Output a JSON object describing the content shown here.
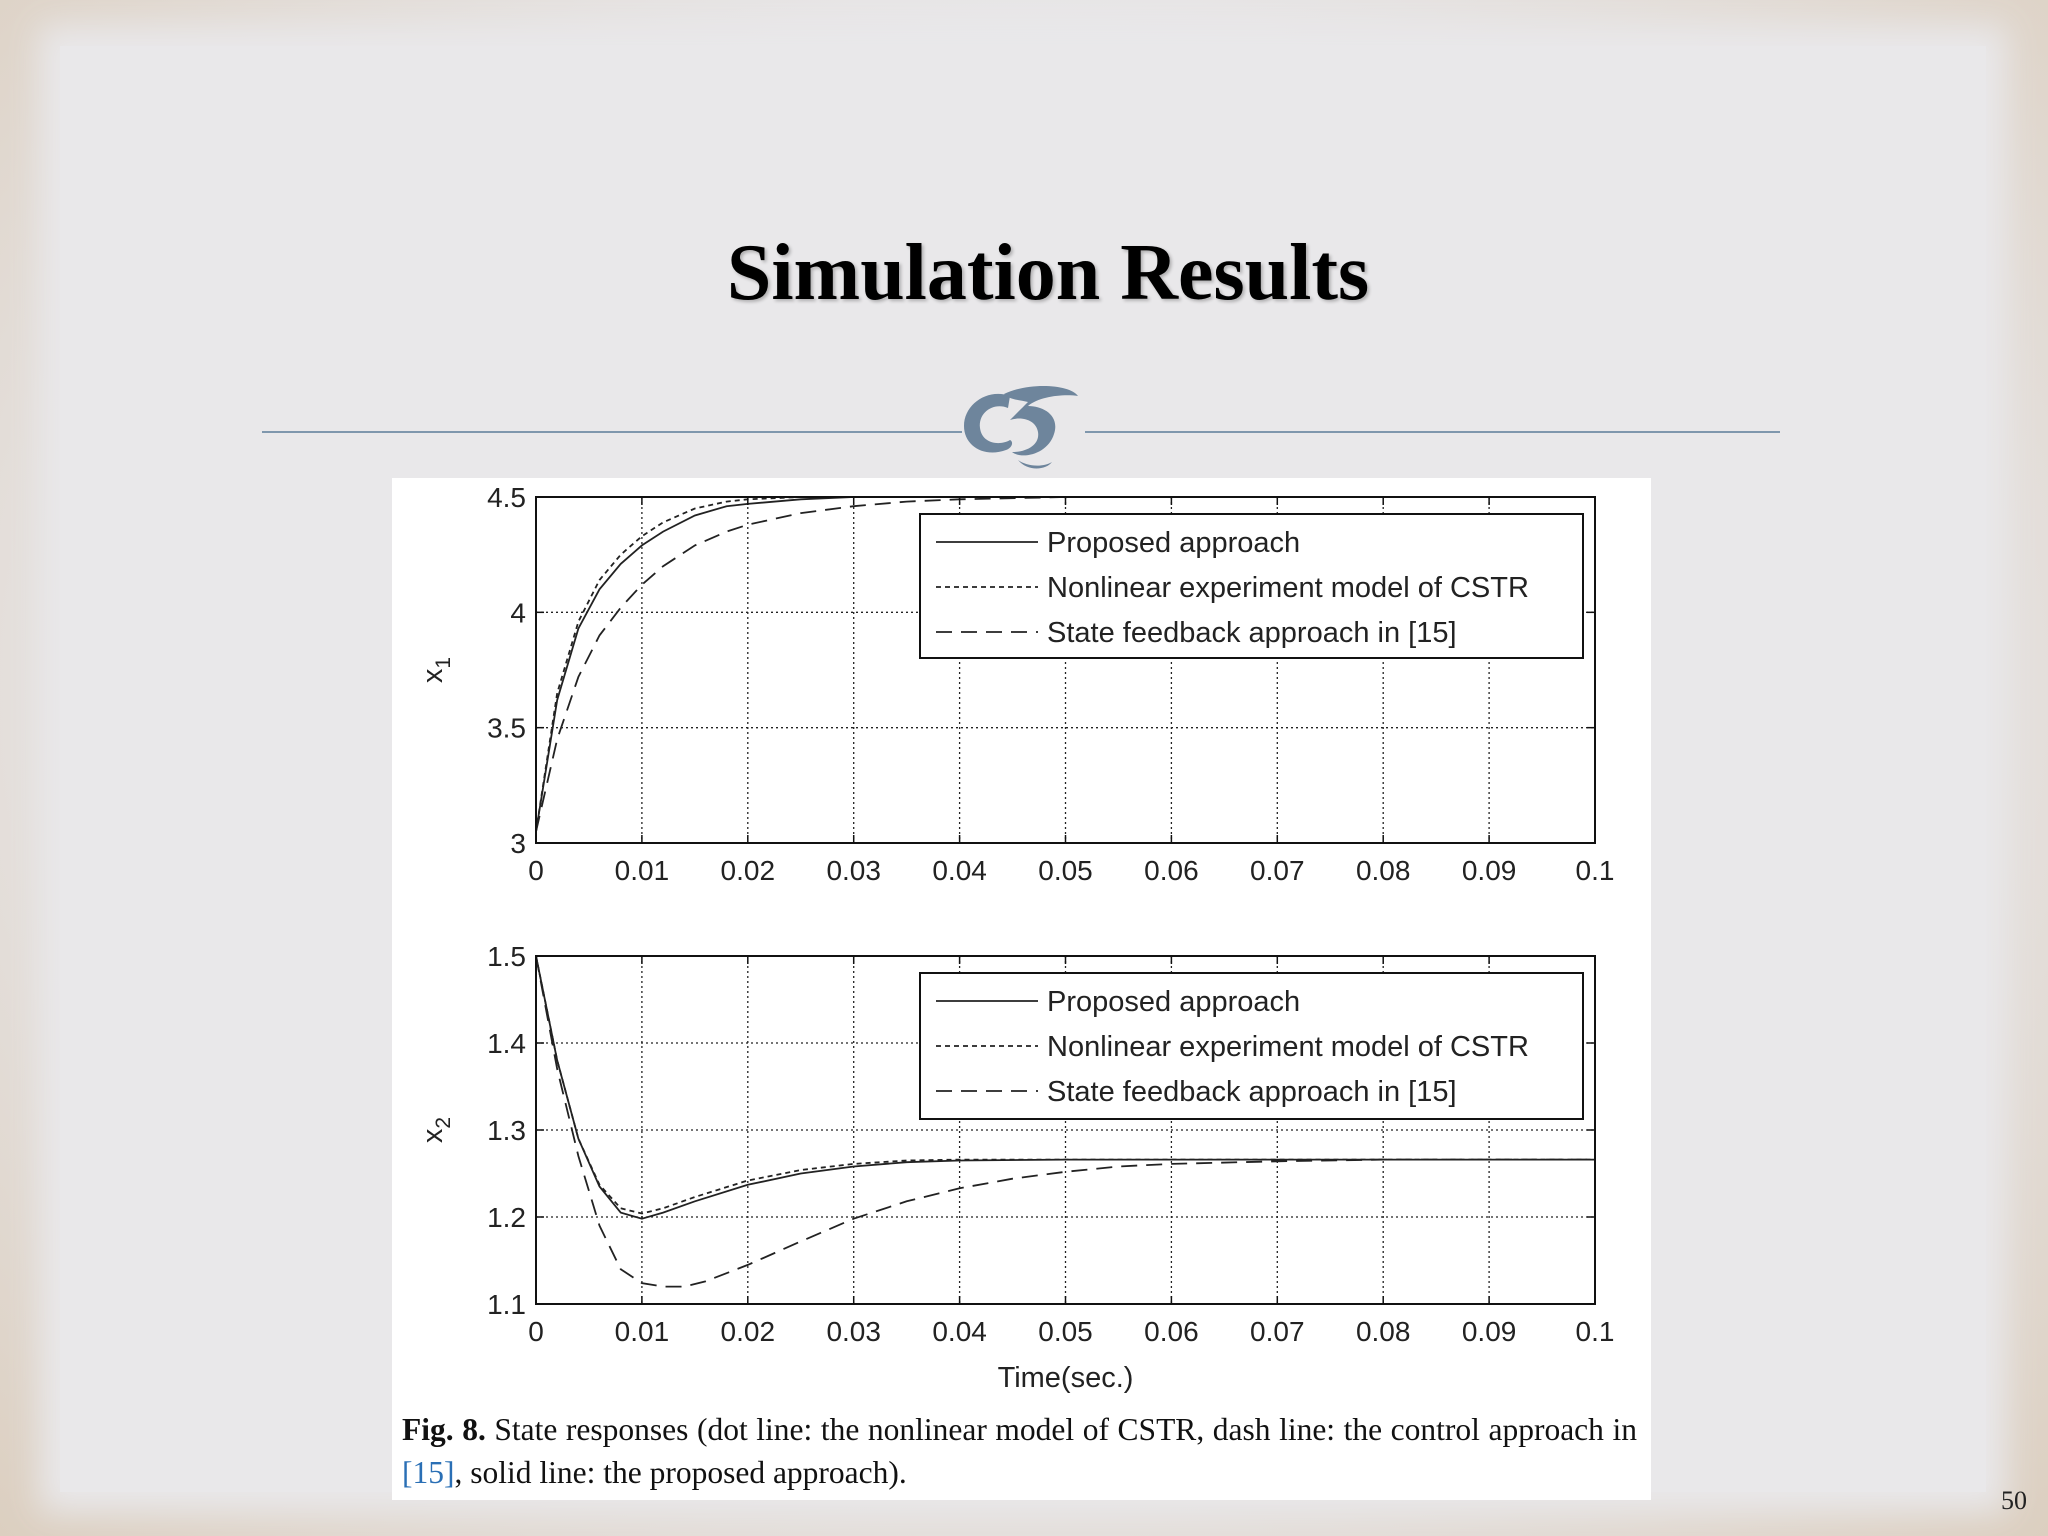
{
  "slide": {
    "title": "Simulation Results",
    "page_number": "50",
    "ornament_icon": "fleuron-ornament-icon",
    "divider_color": "#7f97ad"
  },
  "figure": {
    "caption_label": "Fig. 8.",
    "caption_text_1": " State responses (dot line: the nonlinear model of CSTR, dash line: the control approach in ",
    "caption_ref": "[15]",
    "caption_text_2": ", solid line: the proposed approach).",
    "xlabel": "Time(sec.)"
  },
  "chart_data": [
    {
      "type": "line",
      "ylabel": "x1",
      "xlim": [
        0,
        0.1
      ],
      "ylim": [
        3,
        4.5
      ],
      "xticks": [
        0,
        0.01,
        0.02,
        0.03,
        0.04,
        0.05,
        0.06,
        0.07,
        0.08,
        0.09,
        0.1
      ],
      "xtick_labels": [
        "0",
        "0.01",
        "0.02",
        "0.03",
        "0.04",
        "0.05",
        "0.06",
        "0.07",
        "0.08",
        "0.09",
        "0.1"
      ],
      "yticks": [
        3,
        3.5,
        4,
        4.5
      ],
      "ytick_labels": [
        "3",
        "3.5",
        "4",
        "4.5"
      ],
      "grid": true,
      "legend_position": "top-right",
      "series": [
        {
          "name": "Proposed approach",
          "style": "solid",
          "x": [
            0,
            0.002,
            0.004,
            0.006,
            0.008,
            0.01,
            0.012,
            0.015,
            0.018,
            0.02,
            0.025,
            0.03,
            0.04,
            0.06,
            0.08,
            0.1
          ],
          "y": [
            3.05,
            3.62,
            3.93,
            4.1,
            4.21,
            4.29,
            4.35,
            4.42,
            4.46,
            4.47,
            4.49,
            4.5,
            4.5,
            4.5,
            4.5,
            4.5
          ]
        },
        {
          "name": "Nonlinear experiment model of CSTR",
          "style": "dotted",
          "x": [
            0,
            0.002,
            0.004,
            0.006,
            0.008,
            0.01,
            0.012,
            0.015,
            0.018,
            0.02,
            0.025,
            0.03,
            0.04,
            0.06,
            0.08,
            0.1
          ],
          "y": [
            3.05,
            3.65,
            3.96,
            4.14,
            4.25,
            4.33,
            4.39,
            4.45,
            4.48,
            4.49,
            4.5,
            4.5,
            4.5,
            4.5,
            4.5,
            4.5
          ]
        },
        {
          "name": "State feedback approach in [15]",
          "style": "dashed",
          "x": [
            0,
            0.002,
            0.004,
            0.006,
            0.008,
            0.01,
            0.012,
            0.015,
            0.018,
            0.02,
            0.025,
            0.03,
            0.035,
            0.04,
            0.05,
            0.06,
            0.08,
            0.1
          ],
          "y": [
            3.05,
            3.45,
            3.72,
            3.9,
            4.02,
            4.12,
            4.2,
            4.29,
            4.35,
            4.38,
            4.43,
            4.46,
            4.48,
            4.49,
            4.5,
            4.5,
            4.5,
            4.5
          ]
        }
      ]
    },
    {
      "type": "line",
      "ylabel": "x2",
      "xlim": [
        0,
        0.1
      ],
      "ylim": [
        1.1,
        1.5
      ],
      "xticks": [
        0,
        0.01,
        0.02,
        0.03,
        0.04,
        0.05,
        0.06,
        0.07,
        0.08,
        0.09,
        0.1
      ],
      "xtick_labels": [
        "0",
        "0.01",
        "0.02",
        "0.03",
        "0.04",
        "0.05",
        "0.06",
        "0.07",
        "0.08",
        "0.09",
        "0.1"
      ],
      "yticks": [
        1.1,
        1.2,
        1.3,
        1.4,
        1.5
      ],
      "ytick_labels": [
        "1.1",
        "1.2",
        "1.3",
        "1.4",
        "1.5"
      ],
      "grid": true,
      "legend_position": "top-right",
      "series": [
        {
          "name": "Proposed approach",
          "style": "solid",
          "x": [
            0,
            0.002,
            0.004,
            0.006,
            0.008,
            0.01,
            0.012,
            0.015,
            0.02,
            0.025,
            0.03,
            0.035,
            0.04,
            0.05,
            0.06,
            0.08,
            0.1
          ],
          "y": [
            1.5,
            1.38,
            1.29,
            1.235,
            1.205,
            1.198,
            1.205,
            1.218,
            1.237,
            1.25,
            1.258,
            1.263,
            1.265,
            1.266,
            1.266,
            1.266,
            1.266
          ]
        },
        {
          "name": "Nonlinear experiment model of CSTR",
          "style": "dotted",
          "x": [
            0,
            0.002,
            0.004,
            0.006,
            0.008,
            0.01,
            0.012,
            0.015,
            0.02,
            0.025,
            0.03,
            0.035,
            0.04,
            0.05,
            0.06,
            0.08,
            0.1
          ],
          "y": [
            1.5,
            1.38,
            1.29,
            1.237,
            1.21,
            1.204,
            1.21,
            1.223,
            1.242,
            1.254,
            1.261,
            1.265,
            1.266,
            1.266,
            1.266,
            1.266,
            1.266
          ]
        },
        {
          "name": "State feedback approach in [15]",
          "style": "dashed",
          "x": [
            0,
            0.002,
            0.004,
            0.006,
            0.008,
            0.01,
            0.012,
            0.014,
            0.016,
            0.02,
            0.025,
            0.03,
            0.035,
            0.04,
            0.045,
            0.05,
            0.055,
            0.06,
            0.07,
            0.08,
            0.1
          ],
          "y": [
            1.5,
            1.37,
            1.27,
            1.19,
            1.14,
            1.124,
            1.12,
            1.12,
            1.126,
            1.145,
            1.172,
            1.198,
            1.218,
            1.233,
            1.244,
            1.252,
            1.258,
            1.261,
            1.264,
            1.266,
            1.266
          ]
        }
      ]
    }
  ]
}
